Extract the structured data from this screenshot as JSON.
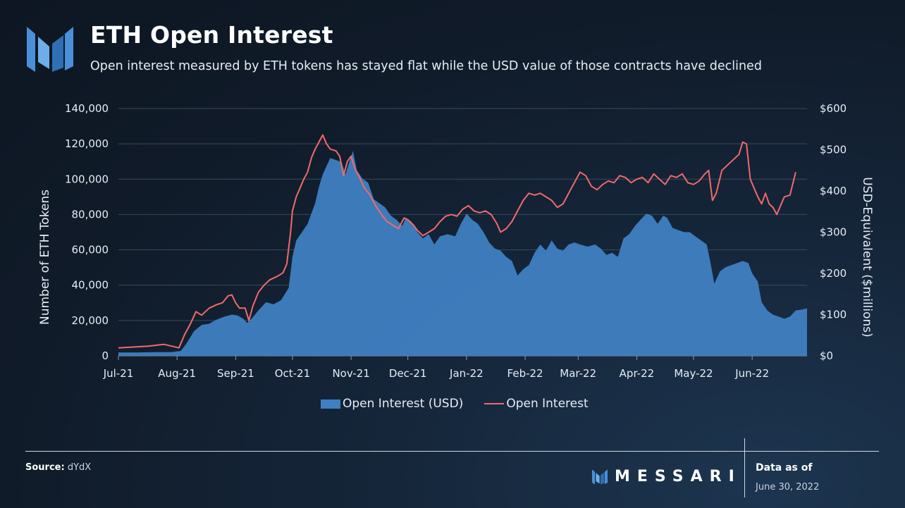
{
  "header": {
    "title": "ETH Open Interest",
    "subtitle": "Open interest measured by ETH tokens has stayed flat while the USD value of those contracts have declined"
  },
  "legend": {
    "area_label": "Open Interest (USD)",
    "line_label": "Open Interest"
  },
  "footer": {
    "source_label": "Source:",
    "source_value": "dYdX",
    "brand": "MESSARI",
    "data_as_of_label": "Data as of",
    "data_as_of_date": "June 30, 2022"
  },
  "colors": {
    "area": "#3f7fc2",
    "line": "#f06a6a",
    "grid": "#3a4a5c",
    "logo": "#4a90d9"
  },
  "chart_data": {
    "type": "area+line",
    "title": "ETH Open Interest",
    "ylabel": "Number of ETH Tokens",
    "y2label": "USD-Equivalent ($millions)",
    "ylim": [
      0,
      140000
    ],
    "y2lim": [
      0,
      600
    ],
    "yticks": [
      "0",
      "20,000",
      "40,000",
      "60,000",
      "80,000",
      "100,000",
      "120,000",
      "140,000"
    ],
    "y2ticks": [
      "$0",
      "$100",
      "$200",
      "$300",
      "$400",
      "$500",
      "$600"
    ],
    "xlim": [
      "2021-07-01",
      "2022-06-30"
    ],
    "xticks": [
      {
        "label": "Jul-21",
        "day": 0
      },
      {
        "label": "Aug-21",
        "day": 31
      },
      {
        "label": "Sep-21",
        "day": 62
      },
      {
        "label": "Oct-21",
        "day": 92
      },
      {
        "label": "Nov-21",
        "day": 123
      },
      {
        "label": "Dec-21",
        "day": 153
      },
      {
        "label": "Jan-22",
        "day": 184
      },
      {
        "label": "Feb-22",
        "day": 215
      },
      {
        "label": "Mar-22",
        "day": 243
      },
      {
        "label": "Apr-22",
        "day": 274
      },
      {
        "label": "May-22",
        "day": 304
      },
      {
        "label": "Jun-22",
        "day": 335
      }
    ],
    "series": [
      {
        "name": "Open Interest (USD)",
        "axis": "right",
        "kind": "area",
        "unit": "USD millions",
        "points": [
          [
            0,
            8
          ],
          [
            10,
            8
          ],
          [
            20,
            9
          ],
          [
            28,
            9
          ],
          [
            33,
            12
          ],
          [
            36,
            30
          ],
          [
            40,
            60
          ],
          [
            44,
            75
          ],
          [
            48,
            78
          ],
          [
            52,
            88
          ],
          [
            56,
            95
          ],
          [
            60,
            100
          ],
          [
            63,
            98
          ],
          [
            66,
            90
          ],
          [
            68,
            80
          ],
          [
            70,
            88
          ],
          [
            74,
            110
          ],
          [
            78,
            130
          ],
          [
            82,
            125
          ],
          [
            86,
            135
          ],
          [
            90,
            165
          ],
          [
            92,
            240
          ],
          [
            94,
            280
          ],
          [
            97,
            300
          ],
          [
            100,
            320
          ],
          [
            104,
            370
          ],
          [
            106,
            410
          ],
          [
            108,
            440
          ],
          [
            110,
            460
          ],
          [
            112,
            480
          ],
          [
            115,
            475
          ],
          [
            118,
            470
          ],
          [
            120,
            440
          ],
          [
            122,
            470
          ],
          [
            124,
            497
          ],
          [
            126,
            450
          ],
          [
            129,
            430
          ],
          [
            132,
            420
          ],
          [
            135,
            380
          ],
          [
            138,
            370
          ],
          [
            141,
            360
          ],
          [
            144,
            340
          ],
          [
            147,
            330
          ],
          [
            150,
            315
          ],
          [
            152,
            335
          ],
          [
            155,
            325
          ],
          [
            158,
            300
          ],
          [
            161,
            285
          ],
          [
            164,
            295
          ],
          [
            167,
            270
          ],
          [
            170,
            290
          ],
          [
            174,
            295
          ],
          [
            178,
            290
          ],
          [
            181,
            320
          ],
          [
            184,
            345
          ],
          [
            187,
            330
          ],
          [
            190,
            320
          ],
          [
            193,
            300
          ],
          [
            196,
            275
          ],
          [
            199,
            260
          ],
          [
            202,
            255
          ],
          [
            205,
            240
          ],
          [
            208,
            230
          ],
          [
            211,
            195
          ],
          [
            214,
            210
          ],
          [
            217,
            220
          ],
          [
            220,
            250
          ],
          [
            223,
            270
          ],
          [
            226,
            255
          ],
          [
            229,
            280
          ],
          [
            232,
            260
          ],
          [
            235,
            255
          ],
          [
            238,
            270
          ],
          [
            241,
            275
          ],
          [
            244,
            270
          ],
          [
            248,
            265
          ],
          [
            252,
            270
          ],
          [
            255,
            260
          ],
          [
            258,
            245
          ],
          [
            261,
            250
          ],
          [
            264,
            240
          ],
          [
            267,
            285
          ],
          [
            270,
            295
          ],
          [
            273,
            315
          ],
          [
            276,
            330
          ],
          [
            279,
            345
          ],
          [
            282,
            340
          ],
          [
            285,
            320
          ],
          [
            288,
            340
          ],
          [
            290,
            335
          ],
          [
            293,
            310
          ],
          [
            296,
            305
          ],
          [
            299,
            300
          ],
          [
            302,
            300
          ],
          [
            305,
            290
          ],
          [
            308,
            280
          ],
          [
            311,
            270
          ],
          [
            313,
            225
          ],
          [
            315,
            175
          ],
          [
            318,
            205
          ],
          [
            321,
            215
          ],
          [
            324,
            220
          ],
          [
            327,
            225
          ],
          [
            330,
            230
          ],
          [
            333,
            225
          ],
          [
            335,
            200
          ],
          [
            338,
            180
          ],
          [
            340,
            130
          ],
          [
            343,
            110
          ],
          [
            346,
            100
          ],
          [
            349,
            95
          ],
          [
            352,
            90
          ],
          [
            355,
            95
          ],
          [
            358,
            110
          ],
          [
            361,
            112
          ],
          [
            364,
            115
          ]
        ]
      },
      {
        "name": "Open Interest",
        "axis": "left",
        "kind": "line",
        "unit": "ETH tokens",
        "points": [
          [
            0,
            4500
          ],
          [
            8,
            5000
          ],
          [
            16,
            5500
          ],
          [
            24,
            6500
          ],
          [
            28,
            5500
          ],
          [
            32,
            4500
          ],
          [
            35,
            12000
          ],
          [
            38,
            18000
          ],
          [
            41,
            25000
          ],
          [
            44,
            23000
          ],
          [
            48,
            27000
          ],
          [
            52,
            29000
          ],
          [
            55,
            30000
          ],
          [
            58,
            34000
          ],
          [
            60,
            34500
          ],
          [
            62,
            30000
          ],
          [
            64,
            27000
          ],
          [
            67,
            27000
          ],
          [
            69,
            20000
          ],
          [
            71,
            28000
          ],
          [
            74,
            36000
          ],
          [
            77,
            40000
          ],
          [
            80,
            43000
          ],
          [
            84,
            45000
          ],
          [
            87,
            47000
          ],
          [
            89,
            52000
          ],
          [
            91,
            70000
          ],
          [
            92,
            82000
          ],
          [
            94,
            90000
          ],
          [
            96,
            95000
          ],
          [
            98,
            100000
          ],
          [
            100,
            104000
          ],
          [
            102,
            112000
          ],
          [
            104,
            117000
          ],
          [
            106,
            121000
          ],
          [
            108,
            125000
          ],
          [
            110,
            120000
          ],
          [
            112,
            117000
          ],
          [
            115,
            116000
          ],
          [
            117,
            113000
          ],
          [
            119,
            102000
          ],
          [
            121,
            110000
          ],
          [
            123,
            113000
          ],
          [
            125,
            106000
          ],
          [
            127,
            102000
          ],
          [
            130,
            95000
          ],
          [
            133,
            91000
          ],
          [
            136,
            85000
          ],
          [
            139,
            80000
          ],
          [
            142,
            76000
          ],
          [
            145,
            74000
          ],
          [
            148,
            72000
          ],
          [
            151,
            78000
          ],
          [
            153,
            77000
          ],
          [
            156,
            74000
          ],
          [
            158,
            71000
          ],
          [
            161,
            68000
          ],
          [
            164,
            70000
          ],
          [
            167,
            72000
          ],
          [
            170,
            76000
          ],
          [
            173,
            79000
          ],
          [
            176,
            80000
          ],
          [
            179,
            79000
          ],
          [
            182,
            83000
          ],
          [
            185,
            85000
          ],
          [
            188,
            82000
          ],
          [
            191,
            81000
          ],
          [
            194,
            82000
          ],
          [
            197,
            80000
          ],
          [
            200,
            75000
          ],
          [
            202,
            70000
          ],
          [
            205,
            72000
          ],
          [
            208,
            76000
          ],
          [
            211,
            82000
          ],
          [
            214,
            88000
          ],
          [
            217,
            92000
          ],
          [
            220,
            91000
          ],
          [
            223,
            92000
          ],
          [
            226,
            90000
          ],
          [
            229,
            88000
          ],
          [
            232,
            84000
          ],
          [
            235,
            86000
          ],
          [
            238,
            92000
          ],
          [
            241,
            98000
          ],
          [
            244,
            104000
          ],
          [
            247,
            102000
          ],
          [
            250,
            96000
          ],
          [
            253,
            94000
          ],
          [
            256,
            97000
          ],
          [
            259,
            99000
          ],
          [
            262,
            98000
          ],
          [
            265,
            102000
          ],
          [
            268,
            101000
          ],
          [
            271,
            98000
          ],
          [
            274,
            100000
          ],
          [
            277,
            101000
          ],
          [
            280,
            98000
          ],
          [
            283,
            103000
          ],
          [
            286,
            100000
          ],
          [
            289,
            97000
          ],
          [
            292,
            102000
          ],
          [
            295,
            101000
          ],
          [
            298,
            103000
          ],
          [
            301,
            98000
          ],
          [
            304,
            97000
          ],
          [
            307,
            99000
          ],
          [
            310,
            103000
          ],
          [
            312,
            105000
          ],
          [
            314,
            88000
          ],
          [
            316,
            92000
          ],
          [
            319,
            105000
          ],
          [
            322,
            108000
          ],
          [
            325,
            111000
          ],
          [
            328,
            114000
          ],
          [
            330,
            121000
          ],
          [
            332,
            120000
          ],
          [
            334,
            100000
          ],
          [
            336,
            95000
          ],
          [
            338,
            90000
          ],
          [
            340,
            86000
          ],
          [
            342,
            92000
          ],
          [
            344,
            86000
          ],
          [
            346,
            84000
          ],
          [
            348,
            80000
          ],
          [
            350,
            85000
          ],
          [
            352,
            90000
          ],
          [
            355,
            91000
          ],
          [
            358,
            104000
          ]
        ]
      }
    ]
  }
}
